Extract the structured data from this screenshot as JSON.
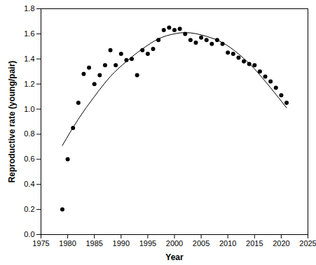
{
  "chart_data": {
    "type": "scatter",
    "x_label": "Year",
    "y_label": "Reproductive rate (young/pair)",
    "xlim": [
      1975,
      2025
    ],
    "xticks": [
      1975,
      1980,
      1985,
      1990,
      1995,
      2000,
      2005,
      2010,
      2015,
      2020,
      2025
    ],
    "ylim": [
      0,
      1.8
    ],
    "yticks": [
      {
        "value": 0,
        "label": "0.0"
      },
      {
        "value": 0.2,
        "label": "0.2"
      },
      {
        "value": 0.4,
        "label": "0.4"
      },
      {
        "value": 0.6,
        "label": "0.6"
      },
      {
        "value": 0.8,
        "label": "0.8"
      },
      {
        "value": 1,
        "label": "1.0"
      },
      {
        "value": 1.2,
        "label": "1.2"
      },
      {
        "value": 1.4,
        "label": "1.4"
      },
      {
        "value": 1.6,
        "label": "1.6"
      },
      {
        "value": 1.8,
        "label": "1.8"
      }
    ],
    "grid": false,
    "series": [
      {
        "type": "scatter",
        "marker": "circle",
        "color": "#000000",
        "x": [
          1979,
          1980,
          1981,
          1982,
          1983,
          1984,
          1985,
          1986,
          1987,
          1988,
          1989,
          1990,
          1991,
          1992,
          1993,
          1994,
          1995,
          1996,
          1997,
          1998,
          1999,
          2000,
          2001,
          2002,
          2003,
          2004,
          2005,
          2006,
          2007,
          2008,
          2009,
          2010,
          2011,
          2012,
          2013,
          2014,
          2015,
          2016,
          2017,
          2018,
          2019,
          2020,
          2021
        ],
        "values": [
          0.2,
          0.6,
          0.85,
          1.05,
          1.28,
          1.33,
          1.2,
          1.27,
          1.35,
          1.47,
          1.35,
          1.44,
          1.39,
          1.4,
          1.27,
          1.47,
          1.44,
          1.48,
          1.55,
          1.63,
          1.65,
          1.63,
          1.64,
          1.6,
          1.55,
          1.53,
          1.57,
          1.55,
          1.52,
          1.55,
          1.52,
          1.45,
          1.44,
          1.41,
          1.38,
          1.36,
          1.35,
          1.3,
          1.26,
          1.22,
          1.17,
          1.11,
          1.05
        ]
      },
      {
        "type": "line",
        "line_style": "solid",
        "color": "#000000",
        "x": [
          1979,
          1982,
          1985,
          1988,
          1991,
          1994,
          1997,
          2000,
          2002,
          2006,
          2009,
          2012,
          2015,
          2018,
          2021
        ],
        "values": [
          0.71,
          0.92,
          1.1,
          1.26,
          1.38,
          1.48,
          1.56,
          1.6,
          1.61,
          1.58,
          1.53,
          1.44,
          1.32,
          1.17,
          1.01
        ]
      }
    ]
  }
}
